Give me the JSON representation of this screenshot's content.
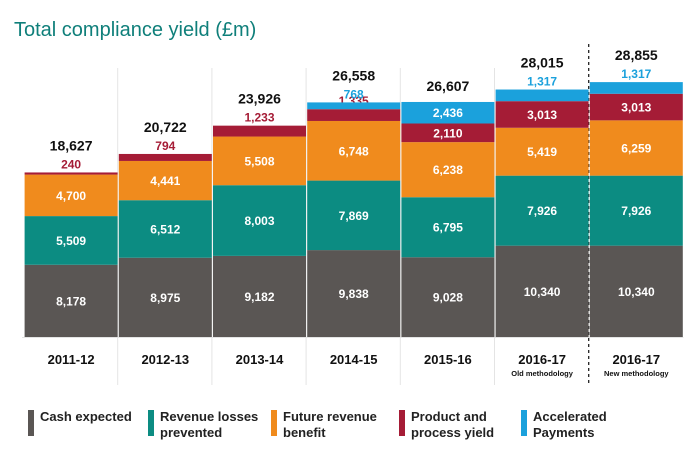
{
  "chart_data": {
    "type": "bar",
    "stacked": true,
    "title": "Total compliance yield (£m)",
    "categories": [
      "2011-12",
      "2012-13",
      "2013-14",
      "2014-15",
      "2015-16",
      "2016-17",
      "2016-17"
    ],
    "category_notes": [
      "",
      "",
      "",
      "",
      "",
      "Old methodology",
      "New methodology"
    ],
    "totals": [
      "18,627",
      "20,722",
      "23,926",
      "26,558",
      "26,607",
      "28,015",
      "28,855"
    ],
    "total_values": [
      18627,
      20722,
      23926,
      26558,
      26607,
      28015,
      28855
    ],
    "series": [
      {
        "name": "Cash expected",
        "color": "#5a5654",
        "label_color": "#ffffff",
        "values": [
          8178,
          8975,
          9182,
          9838,
          9028,
          10340,
          10340
        ],
        "labels": [
          "8,178",
          "8,975",
          "9,182",
          "9,838",
          "9,028",
          "10,340",
          "10,340"
        ]
      },
      {
        "name": "Revenue losses prevented",
        "color": "#0c8c82",
        "label_color": "#ffffff",
        "values": [
          5509,
          6512,
          8003,
          7869,
          6795,
          7926,
          7926
        ],
        "labels": [
          "5,509",
          "6,512",
          "8,003",
          "7,869",
          "6,795",
          "7,926",
          "7,926"
        ]
      },
      {
        "name": "Future revenue benefit",
        "color": "#f08b1d",
        "label_color": "#ffffff",
        "values": [
          4700,
          4441,
          5508,
          6748,
          6238,
          5419,
          6259
        ],
        "labels": [
          "4,700",
          "4,441",
          "5,508",
          "6,748",
          "6,238",
          "5,419",
          "6,259"
        ]
      },
      {
        "name": "Product and process yield",
        "color": "#a51c36",
        "label_color": "#ffffff",
        "values": [
          240,
          794,
          1233,
          1335,
          2110,
          3013,
          3013
        ],
        "labels": [
          "240",
          "794",
          "1,233",
          "1,335",
          "2,110",
          "3,013",
          "3,013"
        ]
      },
      {
        "name": "Accelerated Payments",
        "color": "#1ba1dc",
        "label_color": "#ffffff",
        "values": [
          0,
          0,
          0,
          768,
          2436,
          1317,
          1317
        ],
        "labels": [
          "",
          "",
          "",
          "768",
          "2,436",
          "1,317",
          "1,317"
        ]
      }
    ],
    "ylim": [
      0,
      30000
    ],
    "grid": false,
    "legend_position": "bottom",
    "separator_before_last": true
  }
}
